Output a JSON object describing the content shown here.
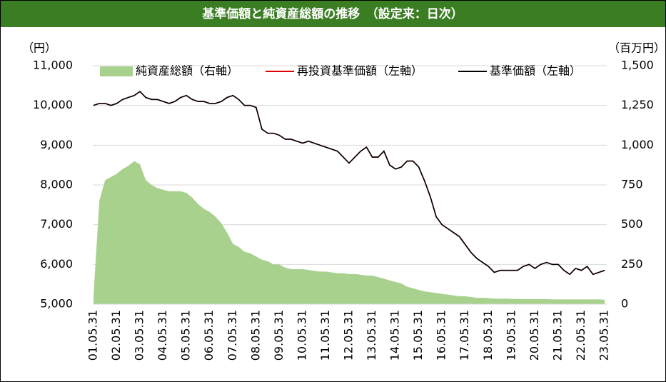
{
  "chart_data": {
    "type": "line",
    "title": "基準価額と純資産総額の推移　（設定来：日次）",
    "y_label": "（円）",
    "y2_label": "（百万円）",
    "categories": [
      "01.05.31",
      null,
      null,
      null,
      "02.05.31",
      null,
      null,
      null,
      "03.05.31",
      null,
      null,
      null,
      "04.05.31",
      null,
      null,
      null,
      "05.05.31",
      null,
      null,
      null,
      "06.05.31",
      null,
      null,
      null,
      "07.05.31",
      null,
      null,
      null,
      "08.05.31",
      null,
      null,
      null,
      "09.05.31",
      null,
      null,
      null,
      "10.05.31",
      null,
      null,
      null,
      "11.05.31",
      null,
      null,
      null,
      "12.05.31",
      null,
      null,
      null,
      "13.05.31",
      null,
      null,
      null,
      "14.05.31",
      null,
      null,
      null,
      "15.05.31",
      null,
      null,
      null,
      "16.05.31",
      null,
      null,
      null,
      "17.05.31",
      null,
      null,
      null,
      "18.05.31",
      null,
      null,
      null,
      "19.05.31",
      null,
      null,
      null,
      "20.05.31",
      null,
      null,
      null,
      "21.05.31",
      null,
      null,
      null,
      "22.05.31",
      null,
      null,
      null,
      "23.05.31"
    ],
    "series": [
      {
        "name": "純資産総額（右軸）",
        "color": "#a9d18e",
        "kind": "area",
        "axis": "y2",
        "values": [
          50,
          650,
          780,
          800,
          820,
          850,
          870,
          900,
          880,
          780,
          750,
          730,
          720,
          710,
          710,
          710,
          700,
          670,
          630,
          600,
          580,
          550,
          510,
          450,
          380,
          360,
          330,
          320,
          300,
          280,
          270,
          250,
          250,
          230,
          220,
          220,
          220,
          215,
          210,
          205,
          205,
          200,
          195,
          195,
          190,
          190,
          185,
          180,
          180,
          170,
          160,
          150,
          140,
          130,
          110,
          100,
          90,
          80,
          75,
          70,
          65,
          60,
          55,
          50,
          50,
          45,
          40,
          40,
          38,
          35,
          35,
          35,
          33,
          33,
          32,
          32,
          32,
          32,
          32,
          30,
          30,
          30,
          30,
          30,
          30,
          30,
          30,
          30,
          28
        ]
      },
      {
        "name": "再投資基準価額（左軸）",
        "color": "#e00000",
        "kind": "line",
        "values": [
          10000,
          10050,
          10050,
          10000,
          10050,
          10150,
          10200,
          10250,
          10350,
          10200,
          10150,
          10150,
          10100,
          10050,
          10100,
          10200,
          10250,
          10150,
          10100,
          10100,
          10050,
          10050,
          10100,
          10200,
          10250,
          10150,
          10000,
          10000,
          9950,
          9400,
          9300,
          9300,
          9250,
          9150,
          9150,
          9100,
          9050,
          9100,
          9050,
          9000,
          8950,
          8900,
          8850,
          8700,
          8550,
          8700,
          8850,
          8950,
          8700,
          8700,
          8850,
          8500,
          8400,
          8450,
          8600,
          8600,
          8450,
          8100,
          7700,
          7200,
          7000,
          6900,
          6800,
          6700,
          6500,
          6300,
          6150,
          6050,
          5950,
          5800,
          5850,
          5850,
          5850,
          5850,
          5950,
          6000,
          5900,
          6000,
          6050,
          6000,
          6000,
          5850,
          5750,
          5900,
          5850,
          5950,
          5750,
          5800,
          5850
        ]
      },
      {
        "name": "基準価額（左軸）",
        "color": "#000000",
        "kind": "line",
        "values": [
          10000,
          10050,
          10050,
          10000,
          10050,
          10150,
          10200,
          10250,
          10350,
          10200,
          10150,
          10150,
          10100,
          10050,
          10100,
          10200,
          10250,
          10150,
          10100,
          10100,
          10050,
          10050,
          10100,
          10200,
          10250,
          10150,
          10000,
          10000,
          9950,
          9400,
          9300,
          9300,
          9250,
          9150,
          9150,
          9100,
          9050,
          9100,
          9050,
          9000,
          8950,
          8900,
          8850,
          8700,
          8550,
          8700,
          8850,
          8950,
          8700,
          8700,
          8850,
          8500,
          8400,
          8450,
          8600,
          8600,
          8450,
          8100,
          7700,
          7200,
          7000,
          6900,
          6800,
          6700,
          6500,
          6300,
          6150,
          6050,
          5950,
          5800,
          5850,
          5850,
          5850,
          5850,
          5950,
          6000,
          5900,
          6000,
          6050,
          6000,
          6000,
          5850,
          5750,
          5900,
          5850,
          5950,
          5750,
          5800,
          5850
        ]
      }
    ],
    "ylim": [
      5000,
      11000
    ],
    "yticks": [
      {
        "value": 5000,
        "label": "5,000"
      },
      {
        "value": 6000,
        "label": "6,000"
      },
      {
        "value": 7000,
        "label": "7,000"
      },
      {
        "value": 8000,
        "label": "8,000"
      },
      {
        "value": 9000,
        "label": "9,000"
      },
      {
        "value": 10000,
        "label": "10,000"
      },
      {
        "value": 11000,
        "label": "11,000"
      }
    ],
    "y2lim": [
      0,
      1500
    ],
    "y2ticks": [
      0,
      250,
      500,
      750,
      {
        "value": 1000,
        "label": "1,000"
      },
      {
        "value": 1250,
        "label": "1,250"
      },
      {
        "value": 1500,
        "label": "1,500"
      }
    ],
    "grid": true,
    "title_color": "#3b7d23"
  }
}
